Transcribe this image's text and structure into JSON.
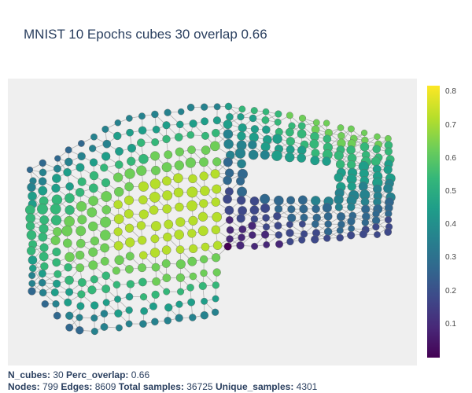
{
  "chart_data": {
    "type": "scatter",
    "title": "MNIST 10 Epochs cubes 30 overlap 0.66",
    "colorbar": {
      "colorscale": "Viridis",
      "range": [
        0.0,
        0.82
      ],
      "ticks": [
        "0.1",
        "0.2",
        "0.3",
        "0.4",
        "0.5",
        "0.6",
        "0.7",
        "0.8"
      ]
    },
    "node_color": "viridis",
    "edge_color": "#b0b0b0",
    "grid": false,
    "axes_visible": false
  },
  "footer": {
    "line1": {
      "ncubes_label": "N_cubes:",
      "ncubes_value": " 30 ",
      "overlap_label": "Perc_overlap:",
      "overlap_value": " 0.66"
    },
    "line2": {
      "nodes_label": "Nodes:",
      "nodes_value": " 799 ",
      "edges_label": "Edges:",
      "edges_value": " 8609 ",
      "samples_label": "Total samples:",
      "samples_value": " 36725 ",
      "unique_label": "Unique_samples:",
      "unique_value": " 4301"
    }
  }
}
